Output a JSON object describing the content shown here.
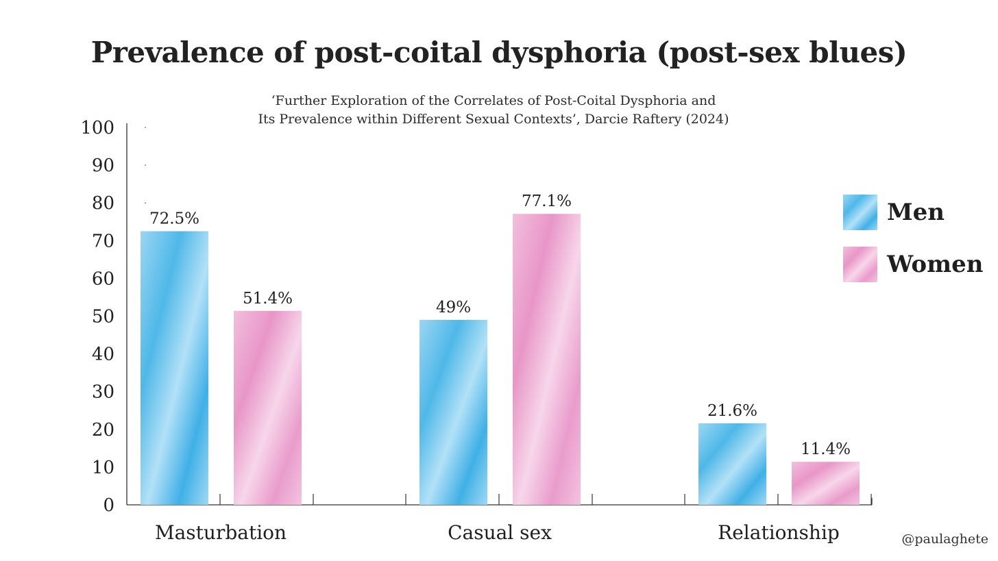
{
  "chart_data": {
    "type": "bar",
    "title": "Prevalence of post-coital dysphoria (post-sex blues)",
    "subtitle_lines": [
      "‘Further Exploration of the Correlates of Post-Coital Dysphoria and",
      "Its Prevalence within Different Sexual Contexts’, Darcie Raftery (2024)"
    ],
    "categories": [
      "Masturbation",
      "Casual sex",
      "Relationship"
    ],
    "series": [
      {
        "name": "Men",
        "values": [
          72.5,
          49,
          21.6
        ],
        "labels": [
          "72.5%",
          "49%",
          "21.6%"
        ],
        "color": "#4fb8e8",
        "color_light": "#a9def6"
      },
      {
        "name": "Women",
        "values": [
          51.4,
          77.1,
          11.4
        ],
        "labels": [
          "51.4%",
          "77.1%",
          "11.4%"
        ],
        "color": "#e99ccb",
        "color_light": "#f6cfe6"
      }
    ],
    "ylim": [
      0,
      100
    ],
    "yticks": [
      0,
      10,
      20,
      30,
      40,
      50,
      60,
      70,
      80,
      90,
      100
    ],
    "ytick_labels": [
      "0",
      "10",
      "20",
      "30",
      "40",
      "50",
      "60",
      "70",
      "80",
      "90",
      "100"
    ],
    "legend_position": "right",
    "grid": false
  },
  "credit": "@paulaghete"
}
